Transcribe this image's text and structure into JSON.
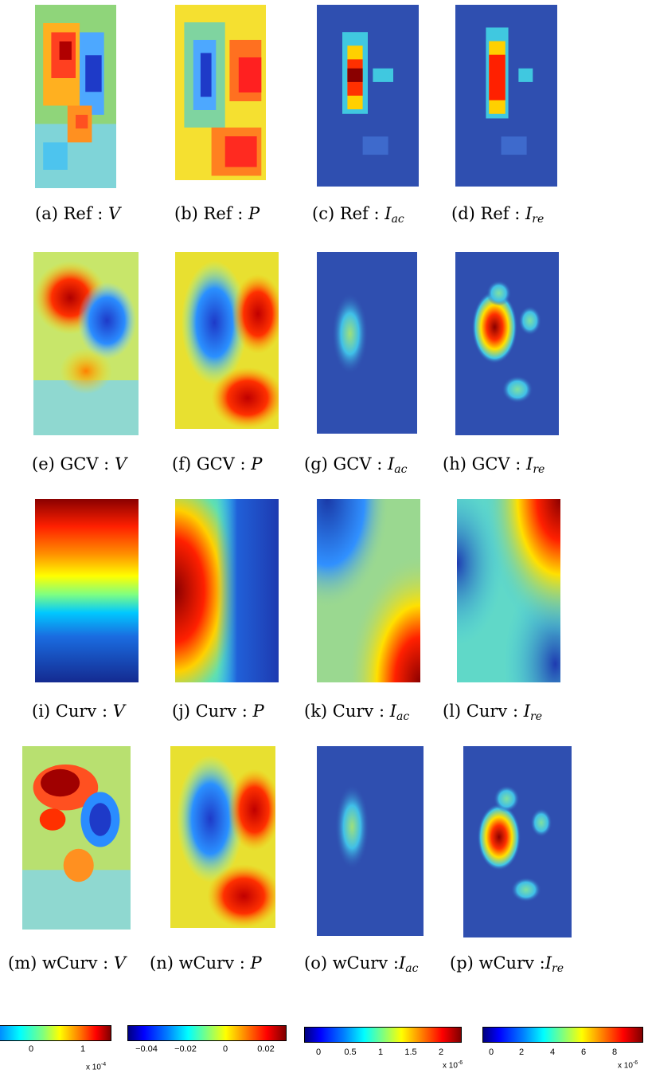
{
  "colors": {
    "jet": [
      "#00007f",
      "#0000ff",
      "#007fff",
      "#00ffff",
      "#7fff7f",
      "#ffff00",
      "#ff7f00",
      "#ff0000",
      "#7f0000"
    ],
    "panel_base": "#2f4fb0"
  },
  "panels": [
    {
      "prefix": "(a) Ref : ",
      "var": "V",
      "sub": ""
    },
    {
      "prefix": "(b) Ref : ",
      "var": "P",
      "sub": ""
    },
    {
      "prefix": "(c) Ref : ",
      "var": "I",
      "sub": "ac"
    },
    {
      "prefix": "(d) Ref : ",
      "var": "I",
      "sub": "re"
    },
    {
      "prefix": "(e) GCV : ",
      "var": "V",
      "sub": ""
    },
    {
      "prefix": "(f) GCV : ",
      "var": "P",
      "sub": ""
    },
    {
      "prefix": "(g) GCV : ",
      "var": "I",
      "sub": "ac"
    },
    {
      "prefix": "(h) GCV : ",
      "var": "I",
      "sub": "re"
    },
    {
      "prefix": "(i) Curv : ",
      "var": "V",
      "sub": ""
    },
    {
      "prefix": "(j) Curv : ",
      "var": "P",
      "sub": ""
    },
    {
      "prefix": "(k) Curv : ",
      "var": "I",
      "sub": "ac"
    },
    {
      "prefix": "(l) Curv : ",
      "var": "I",
      "sub": "re"
    },
    {
      "prefix": "(m) wCurv : ",
      "var": "V",
      "sub": ""
    },
    {
      "prefix": "(n) wCurv : ",
      "var": "P",
      "sub": ""
    },
    {
      "prefix": "(o) wCurv :",
      "var": "I",
      "sub": "ac"
    },
    {
      "prefix": "(p) wCurv :",
      "var": "I",
      "sub": "re"
    }
  ],
  "colorbars": [
    {
      "ticks": [
        "0",
        "1"
      ],
      "multiplier": "x 10",
      "exponent": "-4"
    },
    {
      "ticks": [
        "−0.04",
        "−0.02",
        "0",
        "0.02"
      ],
      "multiplier": "",
      "exponent": ""
    },
    {
      "ticks": [
        "0",
        "0.5",
        "1",
        "1.5",
        "2"
      ],
      "multiplier": "x 10",
      "exponent": "-6"
    },
    {
      "ticks": [
        "0",
        "2",
        "4",
        "6",
        "8"
      ],
      "multiplier": "x 10",
      "exponent": "-6"
    }
  ]
}
